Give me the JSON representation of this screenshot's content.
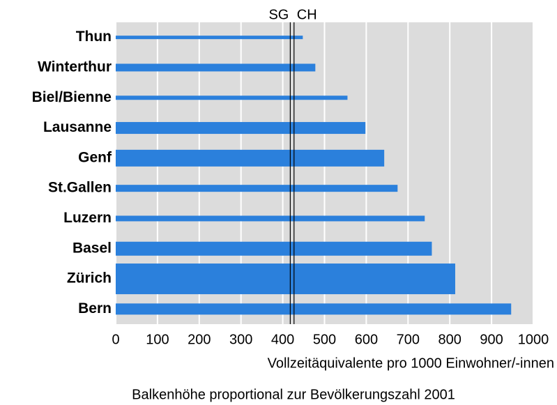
{
  "chart_data": {
    "type": "bar",
    "orientation": "horizontal",
    "x_label": "Vollzeitäquivalente pro 1000 Einwohner/-innen",
    "note": "Balkenhöhe proportional zur Bevölkerungszahl 2001",
    "categories": [
      "Thun",
      "Winterthur",
      "Biel/Bienne",
      "Lausanne",
      "Genf",
      "St.Gallen",
      "Luzern",
      "Basel",
      "Zürich",
      "Bern"
    ],
    "values": [
      448,
      478,
      555,
      598,
      643,
      675,
      740,
      757,
      813,
      947
    ],
    "sizes": [
      5,
      11,
      6,
      17,
      24,
      10,
      8,
      20,
      44,
      16
    ],
    "color": "#2b80dc",
    "reference_lines": [
      {
        "label": "SG",
        "value": 418
      },
      {
        "label": "CH",
        "value": 427
      }
    ],
    "xlim": [
      0,
      1000
    ],
    "xticks": [
      0,
      100,
      200,
      300,
      400,
      500,
      600,
      700,
      800,
      900,
      1000
    ],
    "grid": true
  }
}
